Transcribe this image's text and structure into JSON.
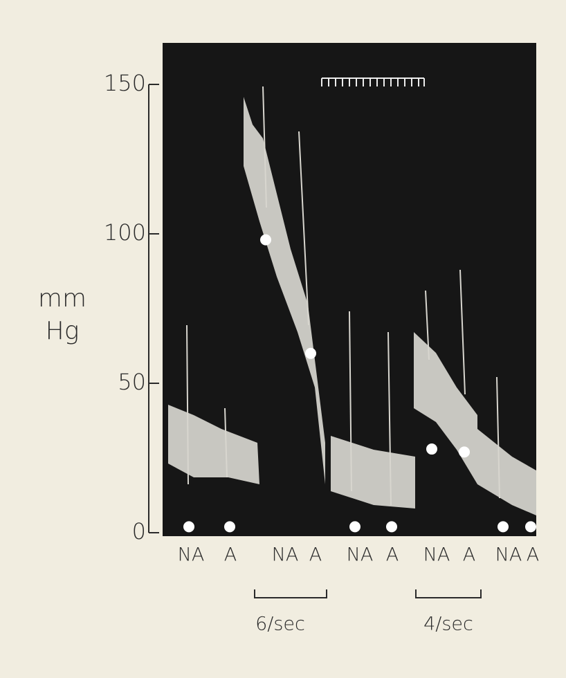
{
  "chart_data": {
    "type": "scatter",
    "y_label": [
      "mm",
      "Hg"
    ],
    "categories": [
      "NA",
      "A",
      "NA",
      "A",
      "NA",
      "A",
      "NA",
      "A",
      "NA",
      "A"
    ],
    "values": [
      2,
      2,
      98,
      60,
      2,
      2,
      28,
      27,
      2,
      2
    ],
    "color": "#ffffff",
    "ylim": [
      0,
      150
    ],
    "yticks": [
      0,
      50,
      100,
      150
    ],
    "annotations": [
      "6/sec",
      "4/sec"
    ]
  }
}
